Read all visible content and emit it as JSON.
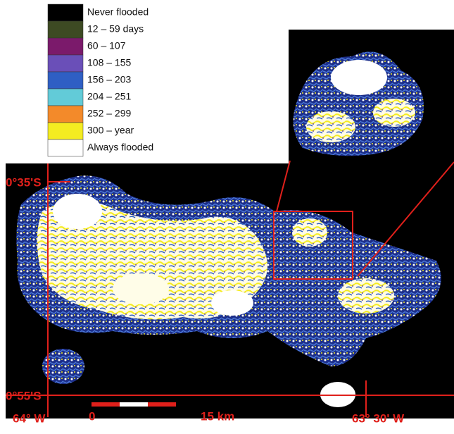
{
  "legend": [
    {
      "label": "Never flooded",
      "color": "#000000"
    },
    {
      "label": "12 – 59 days",
      "color": "#3d4a23"
    },
    {
      "label": "60 – 107",
      "color": "#7b1a6b"
    },
    {
      "label": "108 – 155",
      "color": "#6a4fb8"
    },
    {
      "label": "156 – 203",
      "color": "#2f5fc4"
    },
    {
      "label": "204 – 251",
      "color": "#62cbd8"
    },
    {
      "label": "252 – 299",
      "color": "#f38a2a"
    },
    {
      "label": "300 – year",
      "color": "#f4ec21"
    },
    {
      "label": "Always flooded",
      "color": "#ffffff"
    }
  ],
  "coordinates": {
    "lat_top": "0°35'S",
    "lat_bottom": "0°55'S",
    "lon_left": "64° W",
    "lon_right": "63° 30' W"
  },
  "scale_bar": {
    "start": "0",
    "end": "15 km"
  }
}
